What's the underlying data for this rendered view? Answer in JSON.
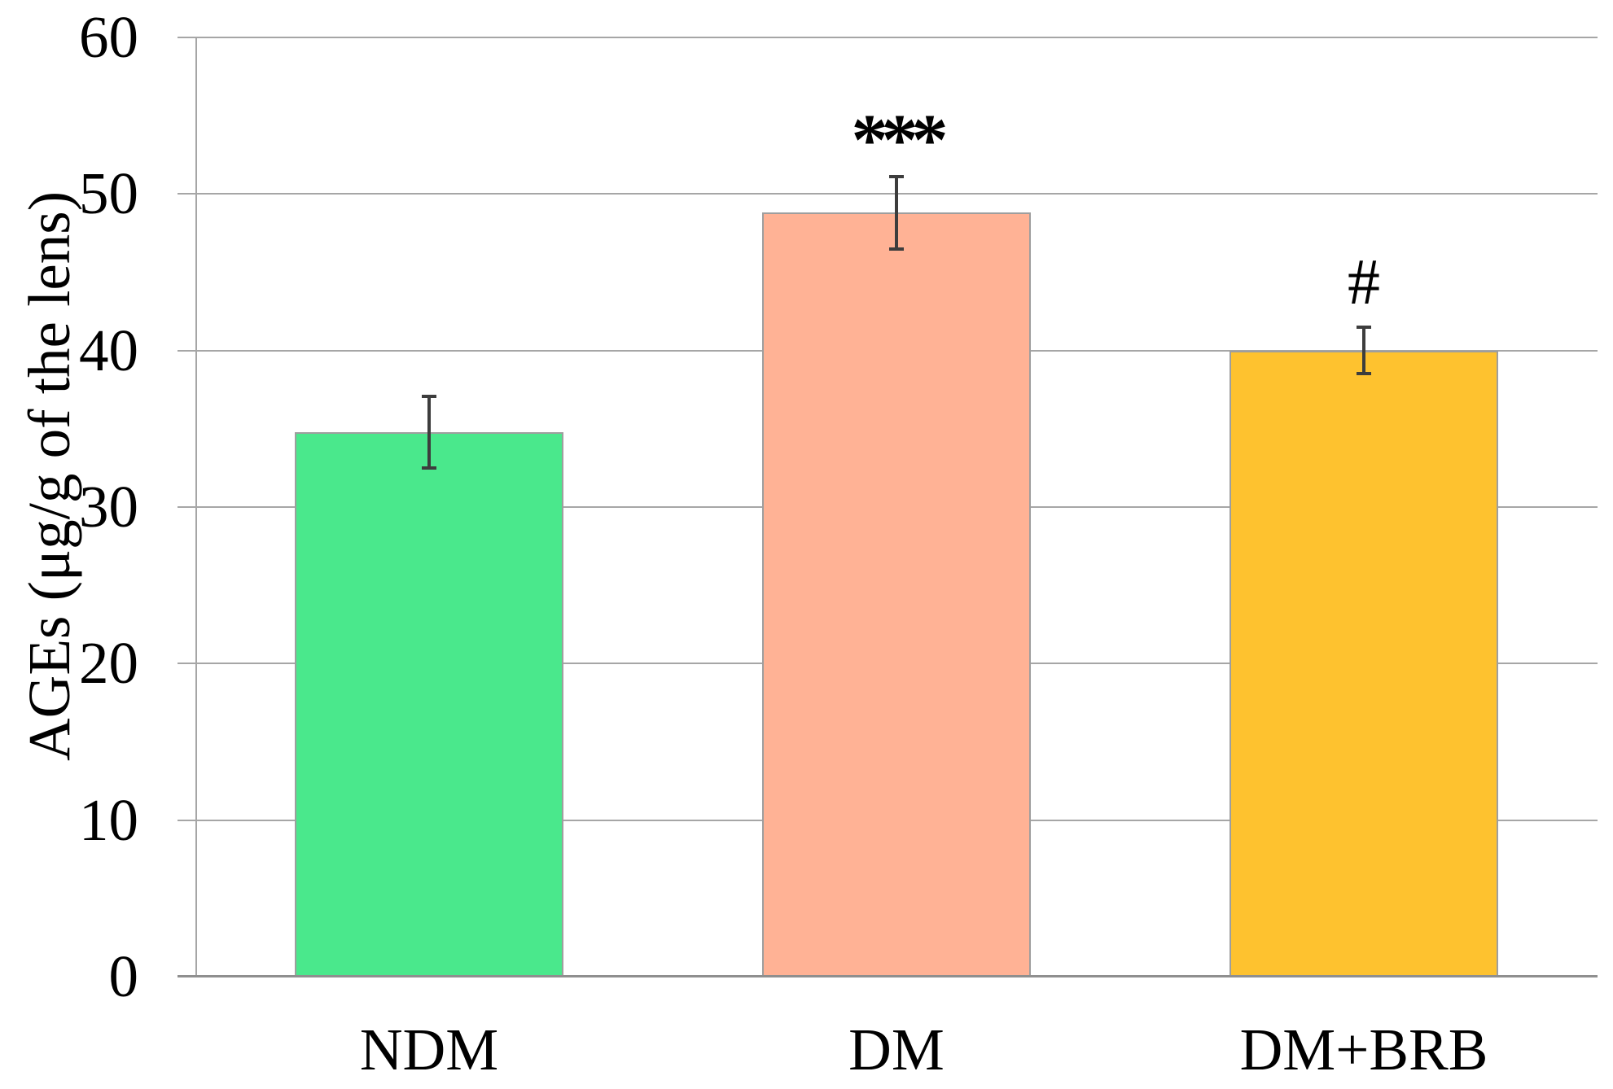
{
  "chart_data": {
    "type": "bar",
    "title": "",
    "ylabel": "AGEs (μg/g of the lens)",
    "xlabel": "",
    "categories": [
      "NDM",
      "DM",
      "DM+BRB"
    ],
    "values": [
      34.8,
      48.8,
      40.0
    ],
    "error_bars": [
      2.4,
      2.4,
      1.6
    ],
    "annotations": [
      "",
      "***",
      "#"
    ],
    "ylim": [
      0,
      60
    ],
    "yticks": [
      0,
      10,
      20,
      30,
      40,
      50,
      60
    ],
    "grid": "horizontal-gridlines",
    "legend": "none",
    "colors": {
      "bars": [
        "#4AE88C",
        "#FFB295",
        "#FEC22F"
      ],
      "bar_border": "#9E9E9E",
      "gridline": "#A6A6A6",
      "axis_line": "#A6A6A6",
      "baseline": "#8F8F8F",
      "error_bar": "#3D3D3D",
      "text": "#000000"
    }
  }
}
